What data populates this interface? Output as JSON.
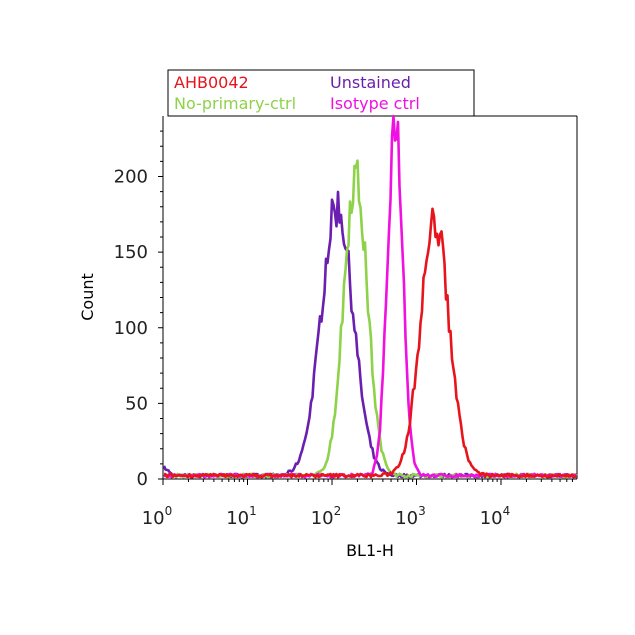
{
  "chart_data": {
    "type": "line",
    "title": "",
    "xlabel": "BL1-H",
    "ylabel": "Count",
    "x_scale": "log",
    "xlim": [
      1,
      60000
    ],
    "ylim": [
      0,
      240
    ],
    "grid": false,
    "legend_placement": "top-left",
    "x_ticks": [
      {
        "value": 1,
        "base": "10",
        "exp": "0"
      },
      {
        "value": 10,
        "base": "10",
        "exp": "1"
      },
      {
        "value": 100,
        "base": "10",
        "exp": "2"
      },
      {
        "value": 1000,
        "base": "10",
        "exp": "3"
      },
      {
        "value": 10000,
        "base": "10",
        "exp": "4"
      }
    ],
    "y_ticks": [
      {
        "value": 0,
        "label": "0"
      },
      {
        "value": 50,
        "label": "50"
      },
      {
        "value": 100,
        "label": "100"
      },
      {
        "value": 150,
        "label": "150"
      },
      {
        "value": 200,
        "label": "200"
      }
    ],
    "series": [
      {
        "name": "AHB0042",
        "color": "#e8141c",
        "legend_row": 0,
        "legend_col": 0,
        "peak_x": 1650,
        "peak_y": 168,
        "sigma_log": 0.17
      },
      {
        "name": "Unstained",
        "color": "#6a1fb0",
        "legend_row": 0,
        "legend_col": 1,
        "peak_x": 115,
        "peak_y": 178,
        "sigma_log": 0.19
      },
      {
        "name": "No-primary-ctrl",
        "color": "#8ed24a",
        "legend_row": 1,
        "legend_col": 0,
        "peak_x": 190,
        "peak_y": 198,
        "sigma_log": 0.14
      },
      {
        "name": "Isotype ctrl",
        "color": "#f010e0",
        "legend_row": 1,
        "legend_col": 1,
        "peak_x": 560,
        "peak_y": 238,
        "sigma_log": 0.09
      }
    ]
  }
}
